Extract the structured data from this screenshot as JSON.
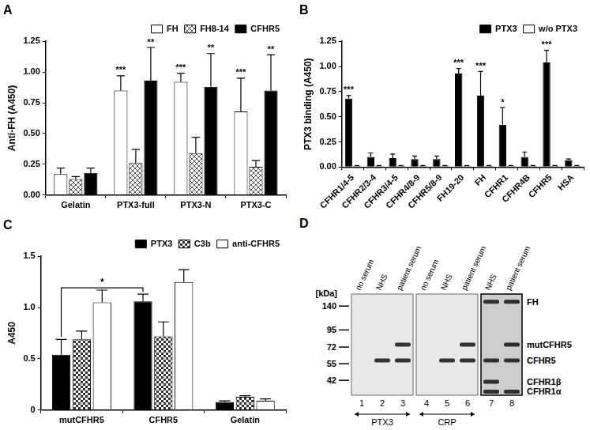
{
  "chart_data": [
    {
      "type": "bar",
      "title": "A",
      "y_label": "Anti-FH (A450)",
      "categories": [
        "Gelatin",
        "PTX3-full",
        "PTX3-N",
        "PTX3-C"
      ],
      "series": [
        {
          "name": "FH",
          "color": "#ffffff",
          "values": [
            0.17,
            0.85,
            0.92,
            0.68
          ],
          "errors": [
            0.05,
            0.12,
            0.07,
            0.27
          ],
          "significance": [
            null,
            "***",
            "***",
            "***"
          ]
        },
        {
          "name": "FH8-14",
          "color": "#555555",
          "marker": "crosshatch",
          "values": [
            0.13,
            0.26,
            0.34,
            0.23
          ],
          "errors": [
            0.02,
            0.11,
            0.13,
            0.05
          ],
          "significance": [
            null,
            null,
            null,
            null
          ]
        },
        {
          "name": "CFHR5",
          "color": "#000000",
          "values": [
            0.18,
            0.93,
            0.88,
            0.85
          ],
          "errors": [
            0.04,
            0.27,
            0.27,
            0.29
          ],
          "significance": [
            null,
            "**",
            "**",
            "**"
          ]
        }
      ],
      "ylim": [
        0,
        1.25
      ],
      "yticks": [
        {
          "value": 0,
          "label": "0.00"
        },
        {
          "value": 0.25,
          "label": "0.25"
        },
        {
          "value": 0.5,
          "label": "0.50"
        },
        {
          "value": 0.75,
          "label": "0.75"
        },
        {
          "value": 1,
          "label": "1.00"
        },
        {
          "value": 1.25,
          "label": "1.25"
        }
      ],
      "grid": false,
      "legend": "top-right"
    },
    {
      "type": "bar",
      "title": "B",
      "y_label": "PTX3 binding (A450)",
      "categories": [
        "CFHR1/4-5",
        "CFHR2/3-4",
        "CFHR3/4-5",
        "CFHR4/8-9",
        "CFHR5/8-9",
        "FH19-20",
        "FH",
        "CFHR1",
        "CFHR4B",
        "CFHR5",
        "HSA"
      ],
      "series": [
        {
          "name": "PTX3",
          "color": "#000000",
          "values": [
            0.68,
            0.1,
            0.09,
            0.08,
            0.08,
            0.93,
            0.71,
            0.42,
            0.1,
            1.04,
            0.07
          ],
          "errors": [
            0.03,
            0.04,
            0.04,
            0.03,
            0.03,
            0.05,
            0.24,
            0.17,
            0.05,
            0.12,
            0.01
          ],
          "significance": [
            "***",
            null,
            null,
            null,
            null,
            "***",
            "***",
            "*",
            null,
            "***",
            null
          ]
        },
        {
          "name": "w/o PTX3",
          "color": "#ffffff",
          "values": [
            0.01,
            0.01,
            0.01,
            0.01,
            0.01,
            0.01,
            0.01,
            0.01,
            0.01,
            0.01,
            0.01
          ],
          "errors": [
            0.005,
            0.005,
            0.005,
            0.005,
            0.005,
            0.005,
            0.005,
            0.005,
            0.005,
            0.005,
            0.005
          ],
          "significance": [
            null,
            null,
            null,
            null,
            null,
            null,
            null,
            null,
            null,
            null,
            null
          ]
        }
      ],
      "ylim": [
        0,
        1.25
      ],
      "yticks": [
        {
          "value": 0,
          "label": "0.00"
        },
        {
          "value": 0.25,
          "label": "0.25"
        },
        {
          "value": 0.5,
          "label": "0.50"
        },
        {
          "value": 0.75,
          "label": "0.75"
        },
        {
          "value": 1,
          "label": "1.00"
        },
        {
          "value": 1.25,
          "label": "1.25"
        }
      ],
      "grid": false,
      "legend": "top-right"
    },
    {
      "type": "bar",
      "title": "C",
      "y_label": "A450",
      "categories": [
        "mutCFHR5",
        "CFHR5",
        "Gelatin"
      ],
      "series": [
        {
          "name": "PTX3",
          "color": "#000000",
          "values": [
            0.54,
            1.06,
            0.08
          ],
          "errors": [
            0.15,
            0.07,
            0.01
          ],
          "significance": [
            null,
            null,
            null
          ]
        },
        {
          "name": "C3b",
          "color": "#333333",
          "marker": "checker",
          "values": [
            0.69,
            0.72,
            0.13
          ],
          "errors": [
            0.08,
            0.14,
            0.01
          ],
          "significance": [
            null,
            null,
            null
          ]
        },
        {
          "name": "anti-CFHR5",
          "color": "#ffffff",
          "values": [
            1.05,
            1.25,
            0.09
          ],
          "errors": [
            0.12,
            0.12,
            0.02
          ],
          "significance": [
            null,
            null,
            null
          ]
        }
      ],
      "annotations": [
        {
          "label": "*",
          "series": "PTX3",
          "from": "mutCFHR5",
          "to": "CFHR5"
        }
      ],
      "ylim": [
        0,
        1.5
      ],
      "yticks": [
        0,
        0.5,
        {
          "value": 1,
          "label": "1.0"
        },
        1.5
      ],
      "grid": false,
      "legend": "top-right"
    }
  ],
  "panel_d": {
    "title": "D",
    "unit_label": "[kDa]",
    "ylim": [
      33,
      170
    ],
    "markers": [
      140,
      95,
      72,
      55,
      42
    ],
    "blots": [
      [
        1,
        2,
        3
      ],
      [
        4,
        5,
        6
      ],
      [
        7,
        8
      ]
    ],
    "lanes": [
      {
        "number": 1,
        "label": "no serum",
        "bands": []
      },
      {
        "number": 2,
        "label": "NHS",
        "bands": [
          "CFHR5"
        ]
      },
      {
        "number": 3,
        "label": "patient serum",
        "bands": [
          "mutCFHR5",
          "CFHR5"
        ]
      },
      {
        "number": 4,
        "label": "no serum",
        "bands": []
      },
      {
        "number": 5,
        "label": "NHS",
        "bands": [
          "CFHR5"
        ]
      },
      {
        "number": 6,
        "label": "patient serum",
        "bands": [
          "mutCFHR5",
          "CFHR5"
        ]
      },
      {
        "number": 7,
        "label": "NHS",
        "bands": [
          "FH",
          "CFHR5",
          "CFHR1β",
          "CFHR1α"
        ]
      },
      {
        "number": 8,
        "label": "patient serum",
        "bands": [
          "FH",
          "mutCFHR5",
          "CFHR5",
          "CFHR1α"
        ]
      }
    ],
    "groups": [
      {
        "label": "PTX3",
        "lanes": [
          1,
          2,
          3
        ]
      },
      {
        "label": "CRP",
        "lanes": [
          4,
          5,
          6
        ]
      }
    ],
    "proteins": [
      {
        "name": "FH",
        "kDa": 150
      },
      {
        "name": "mutCFHR5",
        "kDa": 75
      },
      {
        "name": "CFHR5",
        "kDa": 58
      },
      {
        "name": "CFHR1β",
        "kDa": 41
      },
      {
        "name": "CFHR1α",
        "kDa": 35
      }
    ]
  }
}
